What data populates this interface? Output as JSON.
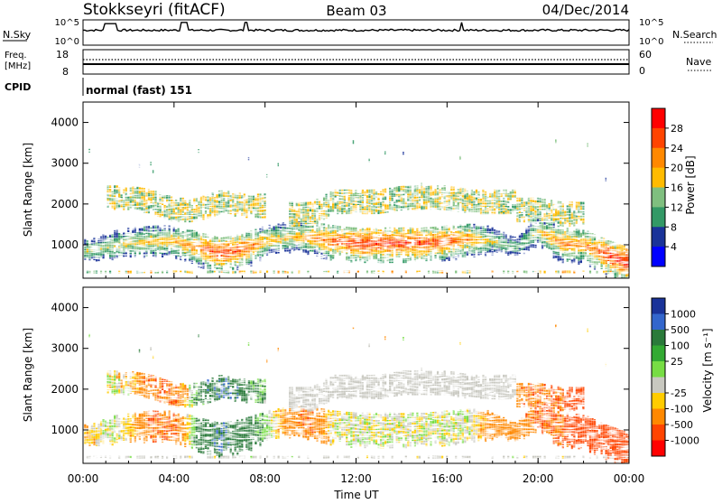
{
  "header": {
    "station": "Stokkseyri (fitACF)",
    "beam": "Beam 03",
    "date": "04/Dec/2014"
  },
  "strip": {
    "nsky": {
      "label": "N.Sky",
      "ticks": [
        "10^5",
        "10^0"
      ]
    },
    "nsearch": {
      "label": "N.Search",
      "ticks": [
        "10^5",
        "10^0"
      ]
    },
    "freq": {
      "label_lines": [
        "Freq.",
        "[MHz]"
      ],
      "ticks": [
        "18",
        "8"
      ]
    },
    "nave": {
      "label": "Nave",
      "ticks": [
        "60",
        "0"
      ]
    },
    "cpid": {
      "label": "CPID",
      "value": "normal (fast) 151"
    }
  },
  "xaxis": {
    "ticks": [
      "00:00",
      "04:00",
      "08:00",
      "12:00",
      "16:00",
      "20:00",
      "00:00"
    ],
    "label": "Time UT"
  },
  "panels": [
    {
      "ylabel": "Slant Range [km]",
      "yticks": [
        "4000",
        "3000",
        "2000",
        "1000"
      ]
    },
    {
      "ylabel": "Slant Range [km]",
      "yticks": [
        "4000",
        "3000",
        "2000",
        "1000"
      ]
    }
  ],
  "colorbars": {
    "power": {
      "label": "Power [dB]",
      "ticks": [
        "28",
        "24",
        "20",
        "16",
        "12",
        "8",
        "4"
      ],
      "colors": [
        "#ff0000",
        "#ff4400",
        "#ff8800",
        "#ffbb00",
        "#7fbf7f",
        "#339966",
        "#1a3399",
        "#0000ff"
      ]
    },
    "velocity": {
      "label": "Velocity [m s⁻¹]",
      "ticks": [
        "1000",
        "500",
        "100",
        "25",
        "-25",
        "-100",
        "-500",
        "-1000"
      ],
      "colors": [
        "#1a3399",
        "#3366cc",
        "#2a7a3a",
        "#33aa33",
        "#77dd44",
        "#c8c8c0",
        "#ffcc00",
        "#ff8800",
        "#ff4400",
        "#ff0000"
      ]
    }
  },
  "chart_data": [
    {
      "type": "heatmap",
      "title": "Power [dB]",
      "x_range_hours": [
        0,
        24
      ],
      "y_range_km": [
        180,
        4500
      ],
      "note_values": "approximate backscatter band: center slant range (km) and peak power (dB) per hour",
      "x": [
        0,
        1,
        2,
        3,
        4,
        5,
        6,
        7,
        8,
        9,
        10,
        11,
        12,
        13,
        14,
        15,
        16,
        17,
        18,
        19,
        20,
        21,
        22,
        23,
        24
      ],
      "center_km": [
        800,
        900,
        1000,
        1050,
        1050,
        900,
        750,
        850,
        1050,
        1150,
        1150,
        1050,
        1000,
        1000,
        1000,
        1000,
        1050,
        1100,
        1050,
        900,
        1300,
        1000,
        950,
        700,
        500
      ],
      "peak_db": [
        14,
        16,
        18,
        19,
        20,
        24,
        28,
        26,
        20,
        18,
        22,
        26,
        28,
        28,
        28,
        27,
        26,
        22,
        16,
        12,
        18,
        24,
        22,
        28,
        30
      ],
      "upper_band_km": [
        null,
        null,
        2100,
        2000,
        1800,
        1800,
        2000,
        1900,
        null,
        null,
        1700,
        2000,
        2000,
        2000,
        2100,
        2100,
        2100,
        2000,
        2000,
        null,
        1800,
        1700,
        null,
        null,
        null
      ]
    },
    {
      "type": "heatmap",
      "title": "Velocity [m s⁻¹]",
      "x_range_hours": [
        0,
        24
      ],
      "y_range_km": [
        180,
        4500
      ],
      "note_values": "approximate dominant velocity (m/s) of backscatter per hour",
      "x": [
        0,
        1,
        2,
        3,
        4,
        5,
        6,
        7,
        8,
        9,
        10,
        11,
        12,
        13,
        14,
        15,
        16,
        17,
        18,
        19,
        20,
        21,
        22,
        23,
        24
      ],
      "center_km": [
        800,
        900,
        1000,
        1050,
        1050,
        900,
        750,
        850,
        1050,
        1150,
        1150,
        1050,
        1000,
        1000,
        1000,
        1000,
        1050,
        1100,
        1050,
        900,
        1300,
        1000,
        950,
        700,
        500
      ],
      "velocity_ms": [
        -100,
        0,
        -50,
        -300,
        -300,
        150,
        300,
        200,
        80,
        -200,
        -300,
        0,
        0,
        0,
        0,
        0,
        0,
        0,
        -200,
        -200,
        -300,
        -300,
        -500,
        -400,
        -500
      ]
    }
  ]
}
